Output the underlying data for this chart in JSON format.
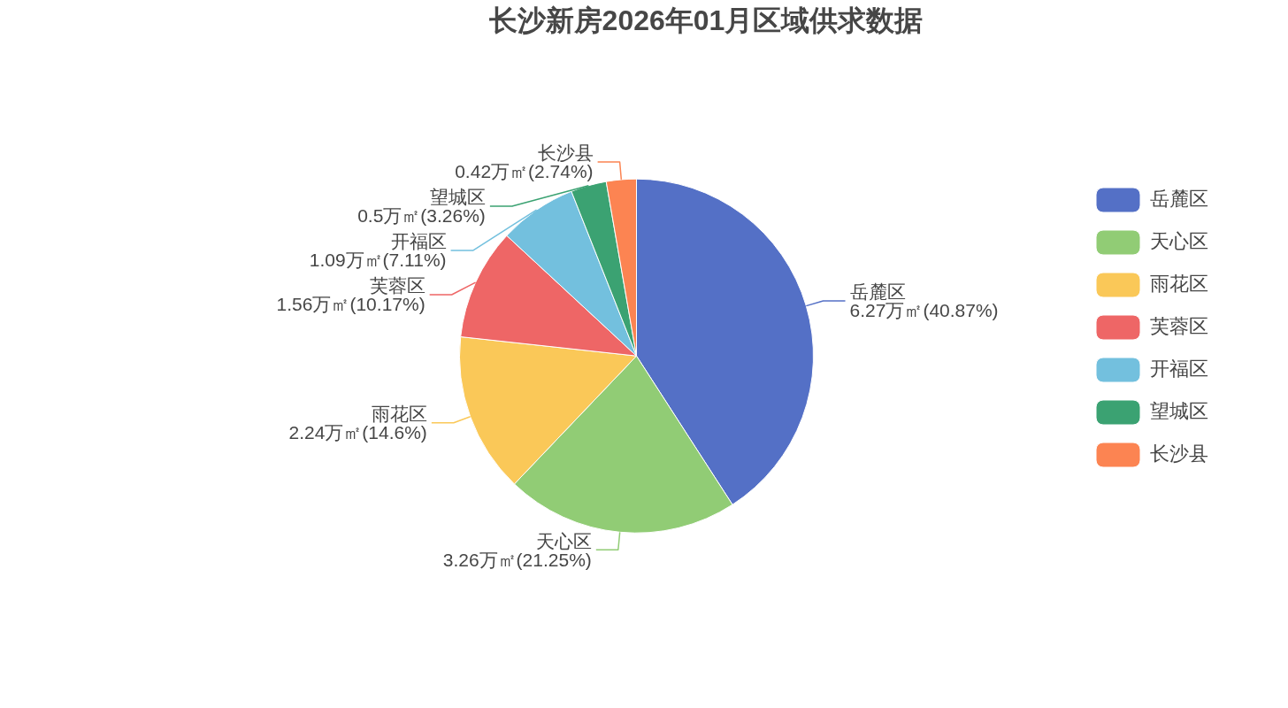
{
  "chart_data": {
    "type": "pie",
    "title": "长沙新房2026年01月区域供求数据",
    "categories": [
      "岳麓区",
      "天心区",
      "雨花区",
      "芙蓉区",
      "开福区",
      "望城区",
      "长沙县"
    ],
    "values": [
      6.27,
      3.26,
      2.24,
      1.56,
      1.09,
      0.5,
      0.42
    ],
    "value_labels": [
      "6.27万㎡(40.87%)",
      "3.26万㎡(21.25%)",
      "2.24万㎡(14.6%)",
      "1.56万㎡(10.17%)",
      "1.09万㎡(7.11%)",
      "0.5万㎡(3.26%)",
      "0.42万㎡(2.74%)"
    ],
    "colors": [
      "#5470c6",
      "#91cc75",
      "#fac858",
      "#ee6666",
      "#73c0de",
      "#3ba272",
      "#fc8452"
    ],
    "legend": "right"
  }
}
